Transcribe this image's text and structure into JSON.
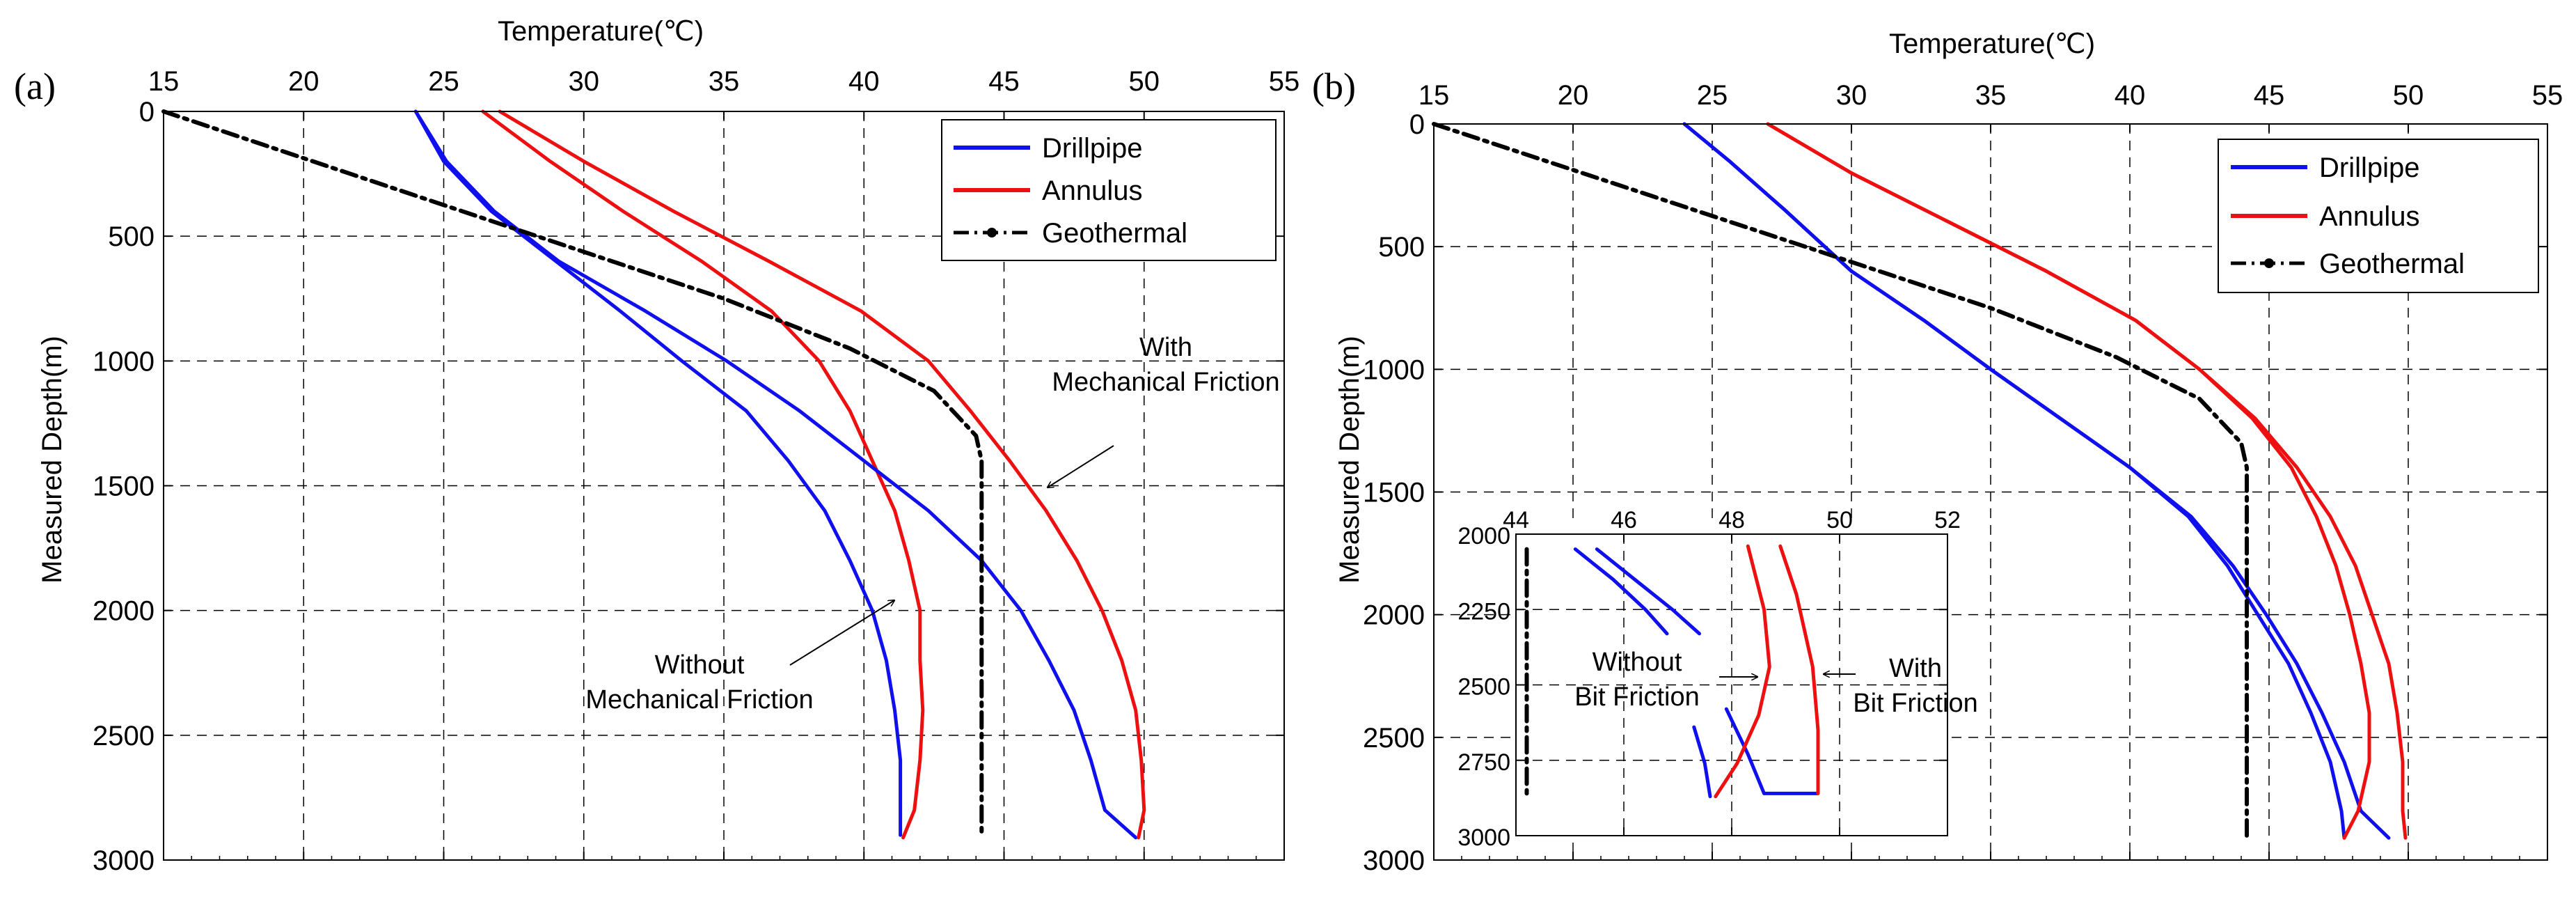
{
  "chart_data": [
    {
      "panel": "(a)",
      "type": "line",
      "title": "",
      "xlabel": "Temperature(℃)",
      "ylabel": "Measured Depth(m)",
      "xlim": [
        15,
        55
      ],
      "ylim": [
        0,
        3000
      ],
      "y_inverted": true,
      "x_ticks": [
        "15",
        "20",
        "25",
        "30",
        "35",
        "40",
        "45",
        "50",
        "55"
      ],
      "y_ticks": [
        "0",
        "500",
        "1000",
        "1500",
        "2000",
        "2500",
        "3000"
      ],
      "grid": true,
      "legend": {
        "placement": "top-right",
        "entries": [
          "Drillpipe",
          "Annulus",
          "Geothermal"
        ]
      },
      "series": [
        {
          "name": "Drillpipe",
          "case": "Without Mechanical Friction",
          "color": "#1010ee",
          "points": [
            [
              24,
              0
            ],
            [
              25,
              200
            ],
            [
              26.7,
              400
            ],
            [
              29,
              600
            ],
            [
              31.3,
              800
            ],
            [
              33.5,
              1000
            ],
            [
              35.8,
              1200
            ],
            [
              37.3,
              1400
            ],
            [
              38.6,
              1600
            ],
            [
              39.5,
              1800
            ],
            [
              40.3,
              2000
            ],
            [
              40.8,
              2200
            ],
            [
              41.1,
              2400
            ],
            [
              41.3,
              2600
            ],
            [
              41.3,
              2800
            ],
            [
              41.3,
              2900
            ]
          ]
        },
        {
          "name": "Annulus",
          "case": "Without Mechanical Friction",
          "color": "#ee1010",
          "points": [
            [
              26.4,
              0
            ],
            [
              28.8,
              200
            ],
            [
              31.4,
              400
            ],
            [
              34.2,
              600
            ],
            [
              36.7,
              800
            ],
            [
              38.4,
              1000
            ],
            [
              39.5,
              1200
            ],
            [
              40.3,
              1400
            ],
            [
              41.1,
              1600
            ],
            [
              41.6,
              1800
            ],
            [
              42,
              2000
            ],
            [
              42,
              2200
            ],
            [
              42.1,
              2400
            ],
            [
              42,
              2600
            ],
            [
              41.8,
              2800
            ],
            [
              41.4,
              2910
            ]
          ]
        },
        {
          "name": "Drillpipe",
          "case": "With Mechanical Friction",
          "color": "#1010ee",
          "points": [
            [
              24,
              0
            ],
            [
              25.1,
              200
            ],
            [
              26.8,
              400
            ],
            [
              29.1,
              600
            ],
            [
              32.2,
              800
            ],
            [
              35.1,
              1000
            ],
            [
              37.7,
              1200
            ],
            [
              40,
              1400
            ],
            [
              42.3,
              1600
            ],
            [
              44.2,
              1800
            ],
            [
              45.6,
              2000
            ],
            [
              46.6,
              2200
            ],
            [
              47.5,
              2400
            ],
            [
              48.1,
              2600
            ],
            [
              48.6,
              2800
            ],
            [
              49.7,
              2910
            ]
          ]
        },
        {
          "name": "Annulus",
          "case": "With Mechanical Friction",
          "color": "#ee1010",
          "points": [
            [
              27,
              0
            ],
            [
              30,
              200
            ],
            [
              33.2,
              400
            ],
            [
              36.6,
              600
            ],
            [
              39.9,
              800
            ],
            [
              42.3,
              1000
            ],
            [
              43.8,
              1200
            ],
            [
              45.2,
              1400
            ],
            [
              46.5,
              1600
            ],
            [
              47.6,
              1800
            ],
            [
              48.5,
              2000
            ],
            [
              49.2,
              2200
            ],
            [
              49.7,
              2400
            ],
            [
              49.9,
              2600
            ],
            [
              50,
              2800
            ],
            [
              49.8,
              2910
            ]
          ]
        },
        {
          "name": "Geothermal",
          "color": "#000000",
          "points": [
            [
              15,
              0
            ],
            [
              27,
              450
            ],
            [
              35,
              750
            ],
            [
              39.5,
              950
            ],
            [
              42.5,
              1120
            ],
            [
              44,
              1300
            ],
            [
              44.2,
              1400
            ],
            [
              44.2,
              1800
            ],
            [
              44.2,
              2200
            ],
            [
              44.2,
              2600
            ],
            [
              44.2,
              2910
            ]
          ]
        }
      ],
      "annotations": [
        {
          "lines": [
            "With",
            "Mechanical Friction"
          ]
        },
        {
          "lines": [
            "Without",
            "Mechanical Friction"
          ]
        }
      ]
    },
    {
      "panel": "(b)",
      "type": "line",
      "title": "",
      "xlabel": "Temperature(℃)",
      "ylabel": "Measured Depth(m)",
      "xlim": [
        15,
        55
      ],
      "ylim": [
        0,
        3000
      ],
      "y_inverted": true,
      "x_ticks": [
        "15",
        "20",
        "25",
        "30",
        "35",
        "40",
        "45",
        "50",
        "55"
      ],
      "y_ticks": [
        "0",
        "500",
        "1000",
        "1500",
        "2000",
        "2500",
        "3000"
      ],
      "grid": true,
      "legend": {
        "placement": "top-right",
        "entries": [
          "Drillpipe",
          "Annulus",
          "Geothermal"
        ]
      },
      "series": [
        {
          "name": "Drillpipe",
          "case": "Without Bit Friction",
          "color": "#1010ee",
          "points": [
            [
              24,
              0
            ],
            [
              25.6,
              150
            ],
            [
              27.6,
              350
            ],
            [
              30,
              600
            ],
            [
              32.6,
              800
            ],
            [
              35,
              1000
            ],
            [
              37.5,
              1200
            ],
            [
              40,
              1400
            ],
            [
              42.1,
              1600
            ],
            [
              43.5,
              1800
            ],
            [
              44.6,
              2000
            ],
            [
              45.7,
              2200
            ],
            [
              46.5,
              2400
            ],
            [
              47.2,
              2600
            ],
            [
              47.6,
              2800
            ],
            [
              47.7,
              2910
            ]
          ]
        },
        {
          "name": "Drillpipe",
          "case": "With Bit Friction",
          "color": "#1010ee",
          "points": [
            [
              24,
              0
            ],
            [
              25.6,
              150
            ],
            [
              27.6,
              350
            ],
            [
              30,
              600
            ],
            [
              32.6,
              800
            ],
            [
              35,
              1000
            ],
            [
              37.5,
              1200
            ],
            [
              40,
              1400
            ],
            [
              42.2,
              1600
            ],
            [
              43.7,
              1800
            ],
            [
              44.9,
              2000
            ],
            [
              46,
              2200
            ],
            [
              46.9,
              2400
            ],
            [
              47.7,
              2600
            ],
            [
              48.3,
              2800
            ],
            [
              49.3,
              2910
            ]
          ]
        },
        {
          "name": "Annulus",
          "case": "Without Bit Friction",
          "color": "#ee1010",
          "points": [
            [
              27,
              0
            ],
            [
              30,
              200
            ],
            [
              33.5,
              400
            ],
            [
              37,
              600
            ],
            [
              40.2,
              800
            ],
            [
              42.5,
              1000
            ],
            [
              44.4,
              1200
            ],
            [
              45.8,
              1400
            ],
            [
              46.7,
              1600
            ],
            [
              47.4,
              1800
            ],
            [
              47.9,
              2000
            ],
            [
              48.3,
              2200
            ],
            [
              48.6,
              2400
            ],
            [
              48.6,
              2600
            ],
            [
              48.2,
              2800
            ],
            [
              47.7,
              2910
            ]
          ]
        },
        {
          "name": "Annulus",
          "case": "With Bit Friction",
          "color": "#ee1010",
          "points": [
            [
              27,
              0
            ],
            [
              30,
              200
            ],
            [
              33.5,
              400
            ],
            [
              37,
              600
            ],
            [
              40.2,
              800
            ],
            [
              42.5,
              1000
            ],
            [
              44.5,
              1200
            ],
            [
              46,
              1400
            ],
            [
              47.2,
              1600
            ],
            [
              48.1,
              1800
            ],
            [
              48.7,
              2000
            ],
            [
              49.3,
              2200
            ],
            [
              49.6,
              2400
            ],
            [
              49.8,
              2600
            ],
            [
              49.8,
              2800
            ],
            [
              49.9,
              2910
            ]
          ]
        },
        {
          "name": "Geothermal",
          "color": "#000000",
          "points": [
            [
              15,
              0
            ],
            [
              27,
              450
            ],
            [
              35,
              750
            ],
            [
              39.5,
              950
            ],
            [
              42.5,
              1120
            ],
            [
              44,
              1300
            ],
            [
              44.2,
              1400
            ],
            [
              44.2,
              1800
            ],
            [
              44.2,
              2200
            ],
            [
              44.2,
              2600
            ],
            [
              44.2,
              2910
            ]
          ]
        }
      ],
      "inset": {
        "xlim": [
          44,
          52
        ],
        "ylim": [
          2000,
          3000
        ],
        "x_ticks": [
          "44",
          "46",
          "48",
          "50",
          "52"
        ],
        "y_ticks": [
          "2000",
          "2250",
          "2500",
          "2750",
          "3000"
        ],
        "series": [
          {
            "name": "Drillpipe",
            "case": "Without Bit Friction",
            "color": "#1010ee",
            "points": [
              [
                45.1,
                2050
              ],
              [
                45.8,
                2150
              ],
              [
                46.4,
                2250
              ],
              [
                46.8,
                2330
              ]
            ]
          },
          {
            "name": "Drillpipe",
            "case": "Without Bit Friction",
            "color": "#1010ee",
            "points": [
              [
                47.3,
                2640
              ],
              [
                47.5,
                2760
              ],
              [
                47.6,
                2870
              ]
            ]
          },
          {
            "name": "Drillpipe",
            "case": "With Bit Friction",
            "color": "#1010ee",
            "points": [
              [
                45.5,
                2050
              ],
              [
                46.2,
                2150
              ],
              [
                46.9,
                2250
              ],
              [
                47.4,
                2330
              ]
            ]
          },
          {
            "name": "Drillpipe",
            "case": "With Bit Friction",
            "color": "#1010ee",
            "points": [
              [
                47.9,
                2580
              ],
              [
                48.3,
                2730
              ],
              [
                48.6,
                2860
              ],
              [
                49.6,
                2860
              ]
            ]
          },
          {
            "name": "Annulus",
            "case": "Without Bit Friction",
            "color": "#ee1010",
            "points": [
              [
                48.3,
                2040
              ],
              [
                48.6,
                2250
              ],
              [
                48.7,
                2440
              ],
              [
                48.5,
                2600
              ],
              [
                48.1,
                2760
              ],
              [
                47.7,
                2870
              ]
            ]
          },
          {
            "name": "Annulus",
            "case": "With Bit Friction",
            "color": "#ee1010",
            "points": [
              [
                48.9,
                2040
              ],
              [
                49.2,
                2200
              ],
              [
                49.5,
                2440
              ],
              [
                49.6,
                2650
              ],
              [
                49.6,
                2860
              ]
            ]
          },
          {
            "name": "Geothermal",
            "color": "#000000",
            "points": [
              [
                44.2,
                2050
              ],
              [
                44.2,
                2860
              ]
            ]
          }
        ],
        "annotations": [
          {
            "lines": [
              "Without",
              "Bit Friction"
            ]
          },
          {
            "lines": [
              "With",
              "Bit Friction"
            ]
          }
        ]
      }
    }
  ]
}
